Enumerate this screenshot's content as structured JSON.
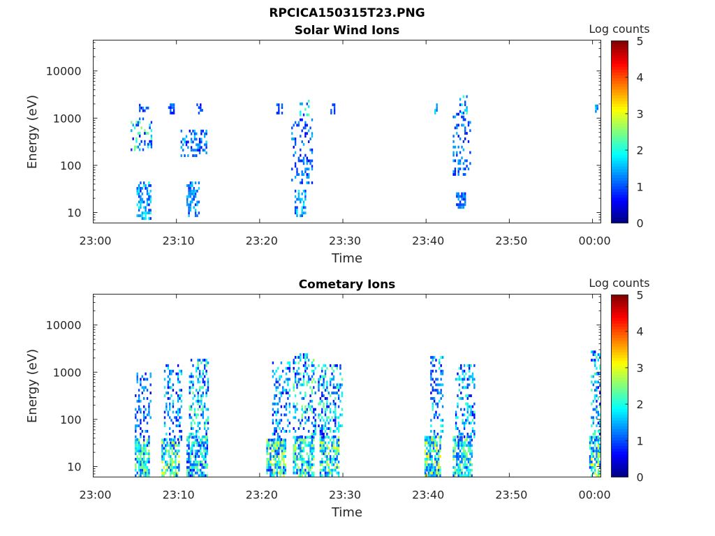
{
  "figure_title": "RPCICA150315T23.PNG",
  "chart_data": [
    {
      "type": "heatmap",
      "title": "Solar Wind Ions",
      "xlabel": "Time",
      "ylabel": "Energy (eV)",
      "x_tick_labels": [
        "23:00",
        "23:10",
        "23:20",
        "23:30",
        "23:40",
        "23:50",
        "00:00"
      ],
      "x_range_minutes": [
        0,
        61
      ],
      "y_tick_values": [
        10,
        100,
        1000,
        10000
      ],
      "y_tick_labels": [
        "10",
        "100",
        "1000",
        "10000"
      ],
      "y_scale": "log",
      "y_range": [
        6,
        45000
      ],
      "colorbar": {
        "label": "Log counts",
        "range": [
          0,
          5
        ],
        "tick_labels": [
          "0",
          "1",
          "2",
          "3",
          "4",
          "5"
        ],
        "colormap": "jet"
      },
      "clusters": [
        {
          "t": [
            5.2,
            7.0
          ],
          "e": [
            7,
            45
          ],
          "c": [
            0.7,
            2.1
          ],
          "d": 0.55
        },
        {
          "t": [
            4.5,
            7.0
          ],
          "e": [
            200,
            800
          ],
          "c": [
            0.6,
            2.6
          ],
          "d": 0.35
        },
        {
          "t": [
            5.5,
            7.0
          ],
          "e": [
            900,
            1800
          ],
          "c": [
            0.6,
            1.5
          ],
          "d": 0.3
        },
        {
          "t": [
            9.0,
            9.6
          ],
          "e": [
            1200,
            1800
          ],
          "c": [
            0.6,
            1.3
          ],
          "d": 0.5
        },
        {
          "t": [
            11.2,
            12.6
          ],
          "e": [
            8,
            40
          ],
          "c": [
            0.7,
            1.7
          ],
          "d": 0.5
        },
        {
          "t": [
            10.5,
            13.5
          ],
          "e": [
            150,
            500
          ],
          "c": [
            0.6,
            1.8
          ],
          "d": 0.35
        },
        {
          "t": [
            12.4,
            13.0
          ],
          "e": [
            1200,
            1800
          ],
          "c": [
            0.6,
            1.2
          ],
          "d": 0.5
        },
        {
          "t": [
            24.2,
            25.4
          ],
          "e": [
            8,
            30
          ],
          "c": [
            0.8,
            2.0
          ],
          "d": 0.5
        },
        {
          "t": [
            23.8,
            26.2
          ],
          "e": [
            40,
            900
          ],
          "c": [
            0.6,
            1.6
          ],
          "d": 0.25
        },
        {
          "t": [
            24.8,
            25.8
          ],
          "e": [
            1100,
            2200
          ],
          "c": [
            0.6,
            2.4
          ],
          "d": 0.4
        },
        {
          "t": [
            22.0,
            22.6
          ],
          "e": [
            1200,
            1800
          ],
          "c": [
            0.6,
            1.4
          ],
          "d": 0.5
        },
        {
          "t": [
            28.5,
            29.0
          ],
          "e": [
            1200,
            1800
          ],
          "c": [
            0.7,
            1.2
          ],
          "d": 0.7
        },
        {
          "t": [
            41.0,
            41.4
          ],
          "e": [
            1200,
            1800
          ],
          "c": [
            1.2,
            1.8
          ],
          "d": 0.6
        },
        {
          "t": [
            43.6,
            44.8
          ],
          "e": [
            12,
            25
          ],
          "c": [
            0.7,
            1.5
          ],
          "d": 0.55
        },
        {
          "t": [
            43.2,
            45.4
          ],
          "e": [
            60,
            1400
          ],
          "c": [
            0.6,
            1.6
          ],
          "d": 0.25
        },
        {
          "t": [
            44.0,
            45.0
          ],
          "e": [
            1200,
            3000
          ],
          "c": [
            0.8,
            2.3
          ],
          "d": 0.35
        },
        {
          "t": [
            60.3,
            60.7
          ],
          "e": [
            1300,
            2000
          ],
          "c": [
            0.9,
            1.8
          ],
          "d": 0.6
        }
      ]
    },
    {
      "type": "heatmap",
      "title": "Cometary Ions",
      "xlabel": "Time",
      "ylabel": "Energy (eV)",
      "x_tick_labels": [
        "23:00",
        "23:10",
        "23:20",
        "23:30",
        "23:40",
        "23:50",
        "00:00"
      ],
      "x_range_minutes": [
        0,
        61
      ],
      "y_tick_values": [
        10,
        100,
        1000,
        10000
      ],
      "y_tick_labels": [
        "10",
        "100",
        "1000",
        "10000"
      ],
      "y_scale": "log",
      "y_range": [
        6,
        45000
      ],
      "colorbar": {
        "label": "Log counts",
        "range": [
          0,
          5
        ],
        "tick_labels": [
          "0",
          "1",
          "2",
          "3",
          "4",
          "5"
        ],
        "colormap": "jet"
      },
      "clusters": [
        {
          "t": [
            5.0,
            6.8
          ],
          "e": [
            6,
            35
          ],
          "c": [
            0.8,
            2.8
          ],
          "d": 0.75
        },
        {
          "t": [
            5.0,
            7.0
          ],
          "e": [
            35,
            900
          ],
          "c": [
            0.5,
            1.6
          ],
          "d": 0.3
        },
        {
          "t": [
            8.2,
            10.2
          ],
          "e": [
            6,
            35
          ],
          "c": [
            0.8,
            3.2
          ],
          "d": 0.75
        },
        {
          "t": [
            8.5,
            10.5
          ],
          "e": [
            35,
            1300
          ],
          "c": [
            0.5,
            2.0
          ],
          "d": 0.3
        },
        {
          "t": [
            11.2,
            13.6
          ],
          "e": [
            6,
            40
          ],
          "c": [
            0.6,
            2.6
          ],
          "d": 0.7
        },
        {
          "t": [
            11.5,
            13.8
          ],
          "e": [
            40,
            1800
          ],
          "c": [
            0.6,
            2.5
          ],
          "d": 0.35
        },
        {
          "t": [
            20.8,
            23.0
          ],
          "e": [
            6,
            35
          ],
          "c": [
            0.8,
            3.1
          ],
          "d": 0.75
        },
        {
          "t": [
            21.5,
            23.5
          ],
          "e": [
            35,
            1500
          ],
          "c": [
            0.5,
            2.1
          ],
          "d": 0.3
        },
        {
          "t": [
            24.0,
            26.4
          ],
          "e": [
            6,
            40
          ],
          "c": [
            0.8,
            2.9
          ],
          "d": 0.7
        },
        {
          "t": [
            24.0,
            26.6
          ],
          "e": [
            40,
            2500
          ],
          "c": [
            0.5,
            2.6
          ],
          "d": 0.3
        },
        {
          "t": [
            27.2,
            29.4
          ],
          "e": [
            6,
            40
          ],
          "c": [
            0.8,
            3.0
          ],
          "d": 0.7
        },
        {
          "t": [
            27.0,
            29.8
          ],
          "e": [
            40,
            1400
          ],
          "c": [
            0.5,
            2.4
          ],
          "d": 0.35
        },
        {
          "t": [
            39.8,
            41.8
          ],
          "e": [
            6,
            40
          ],
          "c": [
            0.9,
            3.4
          ],
          "d": 0.75
        },
        {
          "t": [
            40.5,
            42.0
          ],
          "e": [
            40,
            2000
          ],
          "c": [
            0.5,
            2.2
          ],
          "d": 0.3
        },
        {
          "t": [
            43.2,
            45.6
          ],
          "e": [
            6,
            40
          ],
          "c": [
            0.8,
            2.8
          ],
          "d": 0.7
        },
        {
          "t": [
            43.5,
            45.8
          ],
          "e": [
            40,
            1400
          ],
          "c": [
            0.5,
            2.2
          ],
          "d": 0.4
        },
        {
          "t": [
            59.6,
            61.0
          ],
          "e": [
            6,
            40
          ],
          "c": [
            0.9,
            3.2
          ],
          "d": 0.75
        },
        {
          "t": [
            59.8,
            61.0
          ],
          "e": [
            40,
            2800
          ],
          "c": [
            0.5,
            2.4
          ],
          "d": 0.4
        }
      ]
    }
  ]
}
